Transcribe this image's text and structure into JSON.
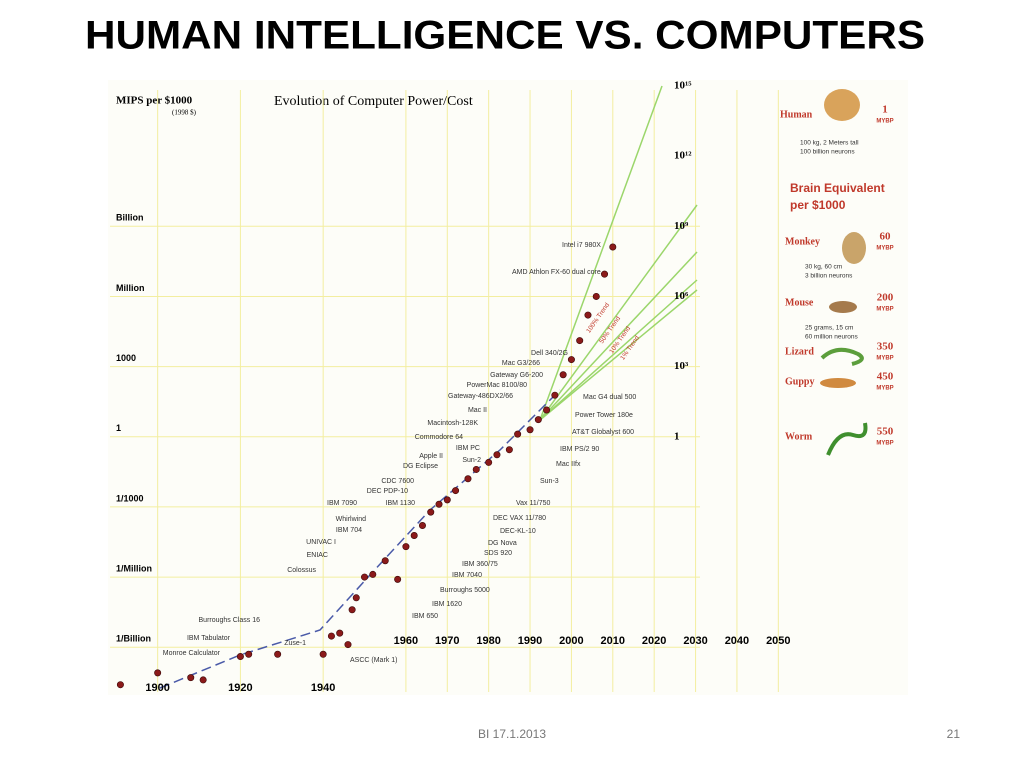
{
  "title": "HUMAN INTELLIGENCE VS. COMPUTERS",
  "footer": "BI 17.1.2013",
  "page_number": "21",
  "chart_data": {
    "type": "scatter",
    "title": "Evolution of Computer Power/Cost",
    "y_label": "MIPS per $1000",
    "y_label_note": "(1998 $)",
    "x": [
      1891,
      1900,
      1908,
      1911,
      1920,
      1922,
      1929,
      1940,
      1942,
      1944,
      1946,
      1947,
      1948,
      1950,
      1952,
      1955,
      1958,
      1960,
      1962,
      1964,
      1966,
      1968,
      1970,
      1972,
      1975,
      1977,
      1980,
      1982,
      1985,
      1987,
      1990,
      1992,
      1994,
      1996,
      1998,
      2000,
      2002,
      2004,
      2006,
      2008,
      2010
    ],
    "values": [
      2.5e-11,
      8e-11,
      5e-11,
      4e-11,
      4e-10,
      5e-10,
      5e-10,
      5e-10,
      3e-09,
      4e-09,
      1.3e-09,
      4e-08,
      1.3e-07,
      1e-06,
      1.3e-06,
      5e-06,
      8e-07,
      2e-05,
      6e-05,
      0.00016,
      0.0006,
      0.0013,
      0.002,
      0.005,
      0.016,
      0.04,
      0.08,
      0.17,
      0.28,
      1.3,
      2,
      5.4,
      14,
      60,
      450,
      2000,
      13000,
      160000,
      1000000,
      9000000,
      130000000
    ],
    "color": "#8b1a1a",
    "yscale": "log",
    "grid": true,
    "xlim": [
      1888,
      2055
    ],
    "xticks": [
      1900,
      1920,
      1940,
      1960,
      1970,
      1980,
      1990,
      2000,
      2010,
      2020,
      2030,
      2040,
      2050
    ],
    "ylim": [
      1e-11,
      1000000000000000.0
    ],
    "yticks": [
      {
        "value": 1000000000.0,
        "label": "Billion"
      },
      {
        "value": 1000000.0,
        "label": "Million"
      },
      1000,
      1,
      {
        "value": 0.001,
        "label": "1/1000"
      },
      {
        "value": 1e-06,
        "label": "1/Million"
      },
      {
        "value": 1e-09,
        "label": "1/Billion"
      }
    ],
    "y2lim": [
      1e-11,
      1000000000000000.0
    ],
    "y2ticks": [
      {
        "value": 1000000000000000.0,
        "label": "10¹⁵"
      },
      {
        "value": 1000000000000.0,
        "label": "10¹²"
      },
      {
        "value": 1000000000.0,
        "label": "10⁹"
      },
      {
        "value": 1000000.0,
        "label": "10⁶"
      },
      {
        "value": 1000,
        "label": "10³"
      },
      1
    ],
    "machine_labels": [
      "Dell 340/2G",
      "Mac G3/266",
      "Gateway G6-200",
      "PowerMac 8100/80",
      "Gateway-486DX2/66",
      "Mac II",
      "Macintosh-128K",
      "Commodore 64",
      "IBM PC",
      "Apple II",
      "Sun-2",
      "DG Eclipse",
      "CDC 7600",
      "DEC PDP-10",
      "IBM 7090",
      "IBM 1130",
      "Whirlwind",
      "IBM 704",
      "UNIVAC I",
      "ENIAC",
      "Colossus",
      "Burroughs Class 16",
      "IBM Tabulator",
      "Monroe Calculator",
      "Zuse-1",
      "ASCC (Mark 1)",
      "Intel i7 980X",
      "AMD Athlon FX-60 dual core",
      "Mac G4 dual 500",
      "Power Tower 180e",
      "AT&T Globalyst 600",
      "IBM PS/2 90",
      "Mac IIfx",
      "Sun-3",
      "Vax 11/750",
      "DEC VAX 11/780",
      "DEC-KL-10",
      "DG Nova",
      "SDS 920",
      "IBM 360/75",
      "IBM 7040",
      "Burroughs 5000",
      "IBM 1620",
      "IBM 650"
    ],
    "trend_labels": [
      "100% Trend",
      "50% Trend",
      "10% Trend",
      "1% Trend"
    ]
  },
  "brain_panel": {
    "heading": [
      "Brain Equivalent",
      "per $1000"
    ],
    "animals": [
      {
        "name": "Human",
        "mybp": 1,
        "unit": "MYBP",
        "notes": [
          "100 kg, 2 Meters tall",
          "100 billion neurons"
        ]
      },
      {
        "name": "Monkey",
        "mybp": 60,
        "unit": "MYBP",
        "notes": [
          "30 kg, 60 cm",
          "3 billion neurons"
        ]
      },
      {
        "name": "Mouse",
        "mybp": 200,
        "unit": "MYBP",
        "notes": [
          "25 grams, 15 cm",
          "60 million neurons"
        ]
      },
      {
        "name": "Lizard",
        "mybp": 350,
        "unit": "MYBP",
        "notes": []
      },
      {
        "name": "Guppy",
        "mybp": 450,
        "unit": "MYBP",
        "notes": []
      },
      {
        "name": "Worm",
        "mybp": 550,
        "unit": "MYBP",
        "notes": []
      }
    ]
  }
}
